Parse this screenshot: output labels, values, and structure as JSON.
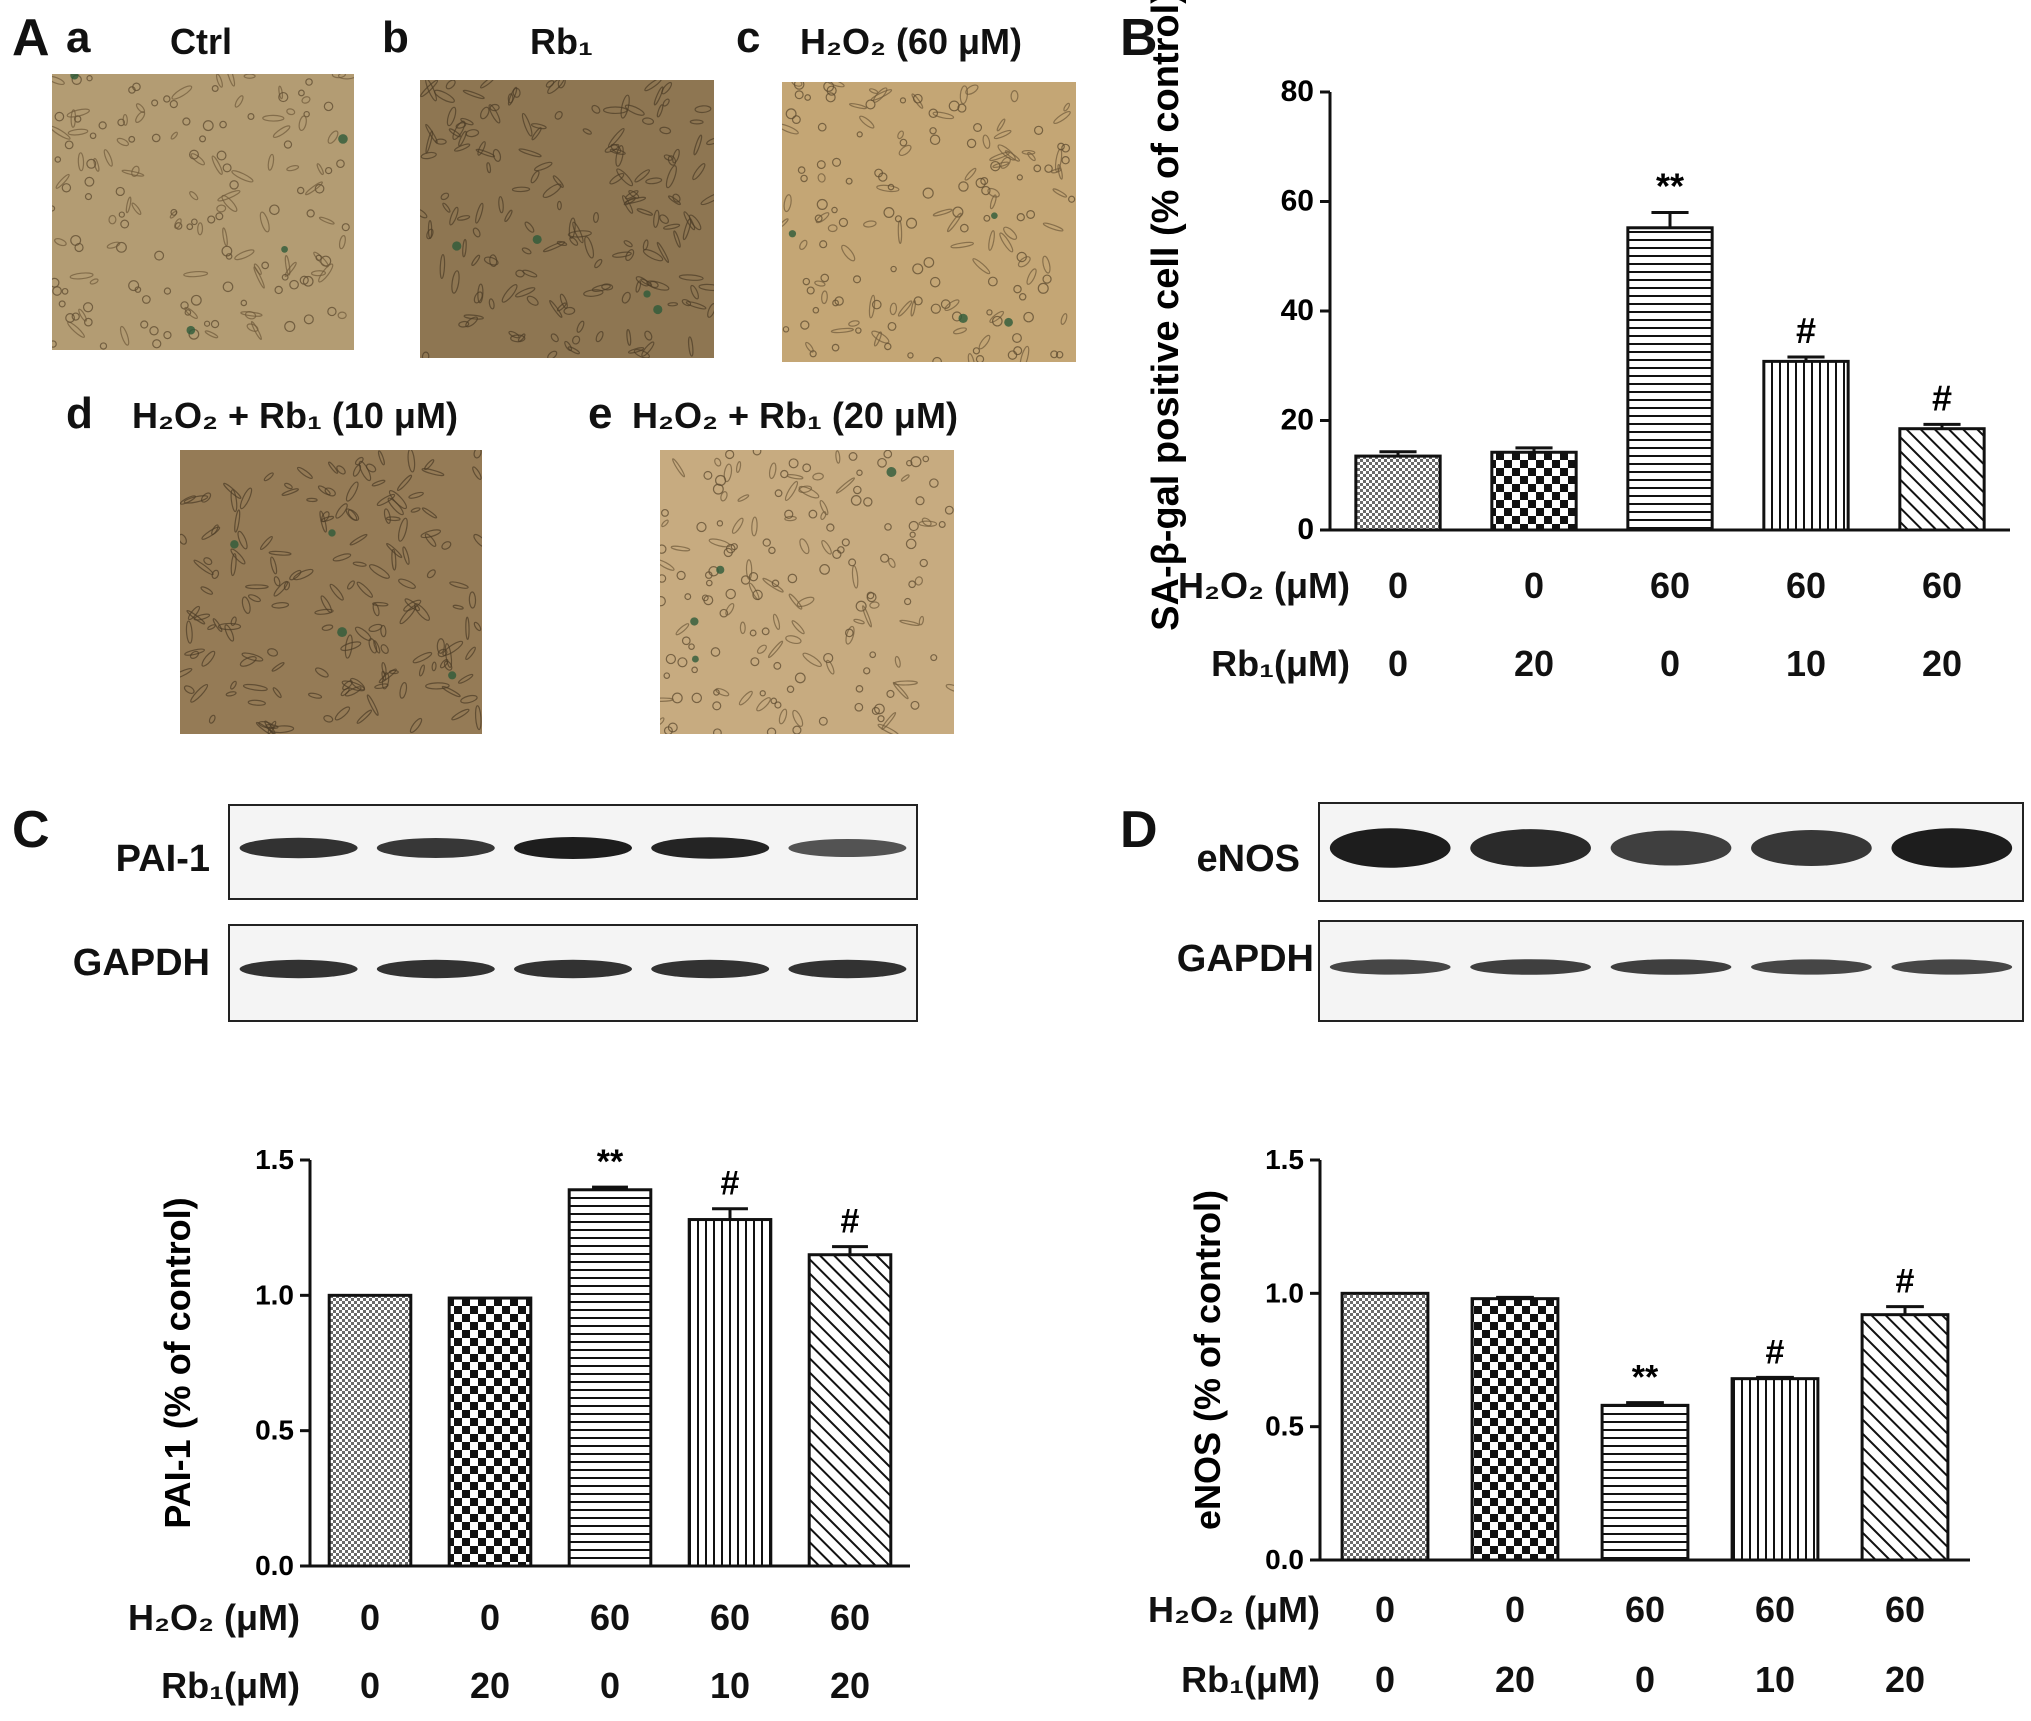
{
  "panel_A": {
    "letter": "A",
    "images": [
      {
        "sub": "a",
        "title": "Ctrl",
        "tint": "#b39c73"
      },
      {
        "sub": "b",
        "title": "Rb₁",
        "tint": "#8e7652"
      },
      {
        "sub": "c",
        "title": "H₂O₂ (60 μM)",
        "tint": "#c4a675"
      },
      {
        "sub": "d",
        "title": "H₂O₂ + Rb₁ (10 μM)",
        "tint": "#957b56"
      },
      {
        "sub": "e",
        "title": "H₂O₂ + Rb₁ (20 μM)",
        "tint": "#c7ab80"
      }
    ]
  },
  "panel_C_blot": {
    "letter": "C",
    "rows": [
      {
        "label": "PAI-1",
        "intensity": [
          0.85,
          0.8,
          1.0,
          0.95,
          0.6
        ]
      },
      {
        "label": "GAPDH",
        "intensity": [
          0.85,
          0.85,
          0.85,
          0.85,
          0.85
        ]
      }
    ]
  },
  "panel_D_blot": {
    "letter": "D",
    "rows": [
      {
        "label": "eNOS",
        "intensity": [
          1.0,
          0.9,
          0.75,
          0.8,
          1.0
        ]
      },
      {
        "label": "GAPDH",
        "intensity": [
          0.7,
          0.75,
          0.75,
          0.7,
          0.7
        ]
      }
    ]
  },
  "conditions": {
    "h2o2_label": "H₂O₂ (μM)",
    "rb1_label": "Rb₁(μM)",
    "h2o2": [
      "0",
      "0",
      "60",
      "60",
      "60"
    ],
    "rb1": [
      "0",
      "20",
      "0",
      "10",
      "20"
    ]
  },
  "chart_data": [
    {
      "panel": "B",
      "type": "bar",
      "ylabel": "SA-β-gal positive cell (% of control)",
      "ylim": [
        0,
        80
      ],
      "yticks": [
        "0",
        "20",
        "40",
        "60",
        "80"
      ],
      "values": [
        13.5,
        14.2,
        55.2,
        30.8,
        18.5
      ],
      "errors": [
        0.8,
        0.8,
        2.8,
        0.8,
        0.8
      ],
      "annotations": [
        "",
        "",
        "**",
        "#",
        "#"
      ],
      "patterns": [
        "dense",
        "checker",
        "hlines",
        "vlines",
        "diag"
      ]
    },
    {
      "panel": "C",
      "type": "bar",
      "ylabel": "PAI-1 (% of control)",
      "ylim": [
        0,
        1.5
      ],
      "yticks": [
        "0.0",
        "0.5",
        "1.0",
        "1.5"
      ],
      "values": [
        1.0,
        0.99,
        1.39,
        1.28,
        1.15
      ],
      "errors": [
        0.0,
        0.0,
        0.01,
        0.04,
        0.03
      ],
      "annotations": [
        "",
        "",
        "**",
        "#",
        "#"
      ],
      "patterns": [
        "dense",
        "checker",
        "hlines",
        "vlines",
        "diag"
      ]
    },
    {
      "panel": "D",
      "type": "bar",
      "ylabel": "eNOS (% of control)",
      "ylim": [
        0,
        1.5
      ],
      "yticks": [
        "0.0",
        "0.5",
        "1.0",
        "1.5"
      ],
      "values": [
        1.0,
        0.98,
        0.58,
        0.68,
        0.92
      ],
      "errors": [
        0.0,
        0.005,
        0.01,
        0.005,
        0.03
      ],
      "annotations": [
        "",
        "",
        "**",
        "#",
        "#"
      ],
      "patterns": [
        "dense",
        "checker",
        "hlines",
        "vlines",
        "diag"
      ]
    }
  ]
}
